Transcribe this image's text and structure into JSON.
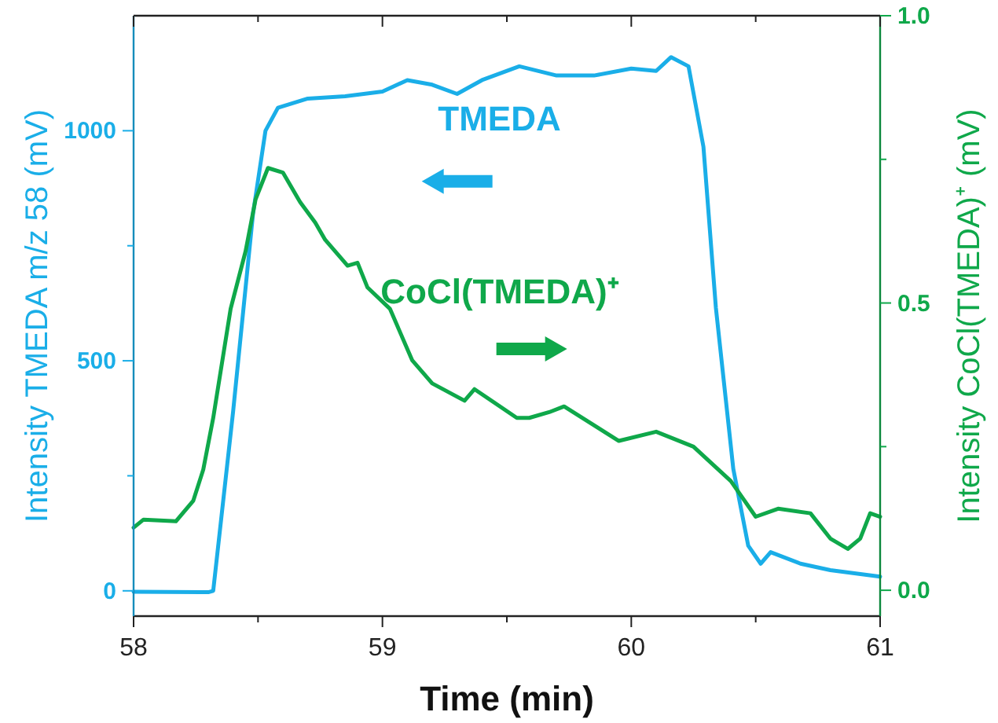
{
  "chart_data": {
    "type": "line",
    "xlabel": "Time (min)",
    "ylabel": "Intensity TMEDA m/z 58 (mV)",
    "y2label": "Intensity CoCl(TMEDA)⁺ (mV)",
    "xlim": [
      58,
      61
    ],
    "xticks": [
      58,
      {
        "value": 58.5,
        "label": null
      },
      59,
      {
        "value": 59.5,
        "label": null
      },
      60,
      {
        "value": 60.5,
        "label": null
      },
      61
    ],
    "ylim": [
      -55,
      1250
    ],
    "yticks": [
      0,
      {
        "value": 250,
        "label": null
      },
      500,
      {
        "value": 750,
        "label": null
      },
      1000
    ],
    "y2lim": [
      -0.045,
      1.0
    ],
    "y2ticks": [
      {
        "value": 0,
        "label": "0.0"
      },
      {
        "value": 0.25,
        "label": null
      },
      {
        "value": 0.5,
        "label": "0.5"
      },
      {
        "value": 0.75,
        "label": null
      },
      {
        "value": 1,
        "label": "1.0"
      }
    ],
    "grid": false,
    "marker": "none",
    "line_style": "solid",
    "annotations": [
      "TMEDA",
      "CoCl(TMEDA)⁺"
    ],
    "series": [
      {
        "color": "#1aaee8",
        "x": [
          58.0,
          58.3,
          58.32,
          58.4,
          58.48,
          58.53,
          58.58,
          58.7,
          58.85,
          59.0,
          59.1,
          59.2,
          59.3,
          59.4,
          59.55,
          59.7,
          59.85,
          60.0,
          60.1,
          60.16,
          60.23,
          60.29,
          60.34,
          60.41,
          60.47,
          60.52,
          60.56,
          60.68,
          60.8,
          61.0
        ],
        "values": [
          -2,
          -3,
          0,
          390,
          820,
          1000,
          1050,
          1070,
          1075,
          1085,
          1110,
          1100,
          1080,
          1110,
          1140,
          1120,
          1120,
          1135,
          1130,
          1160,
          1140,
          965,
          615,
          265,
          98,
          59,
          84,
          59,
          45,
          31
        ]
      },
      {
        "color": "#0fa84a",
        "axis": "y2",
        "x": [
          58.0,
          58.04,
          58.17,
          58.24,
          58.28,
          58.32,
          58.39,
          58.45,
          58.49,
          58.54,
          58.6,
          58.67,
          58.73,
          58.77,
          58.86,
          58.9,
          58.94,
          59.03,
          59.12,
          59.2,
          59.33,
          59.37,
          59.54,
          59.59,
          59.67,
          59.73,
          59.95,
          60.1,
          60.25,
          60.4,
          60.5,
          60.59,
          60.72,
          60.8,
          60.87,
          60.92,
          60.96,
          61.0
        ],
        "values": [
          0.109,
          0.123,
          0.12,
          0.156,
          0.21,
          0.3,
          0.49,
          0.59,
          0.68,
          0.735,
          0.727,
          0.675,
          0.64,
          0.61,
          0.565,
          0.57,
          0.527,
          0.49,
          0.4,
          0.36,
          0.33,
          0.35,
          0.3,
          0.3,
          0.31,
          0.32,
          0.26,
          0.276,
          0.25,
          0.19,
          0.128,
          0.142,
          0.134,
          0.09,
          0.072,
          0.09,
          0.134,
          0.128
        ]
      }
    ]
  }
}
